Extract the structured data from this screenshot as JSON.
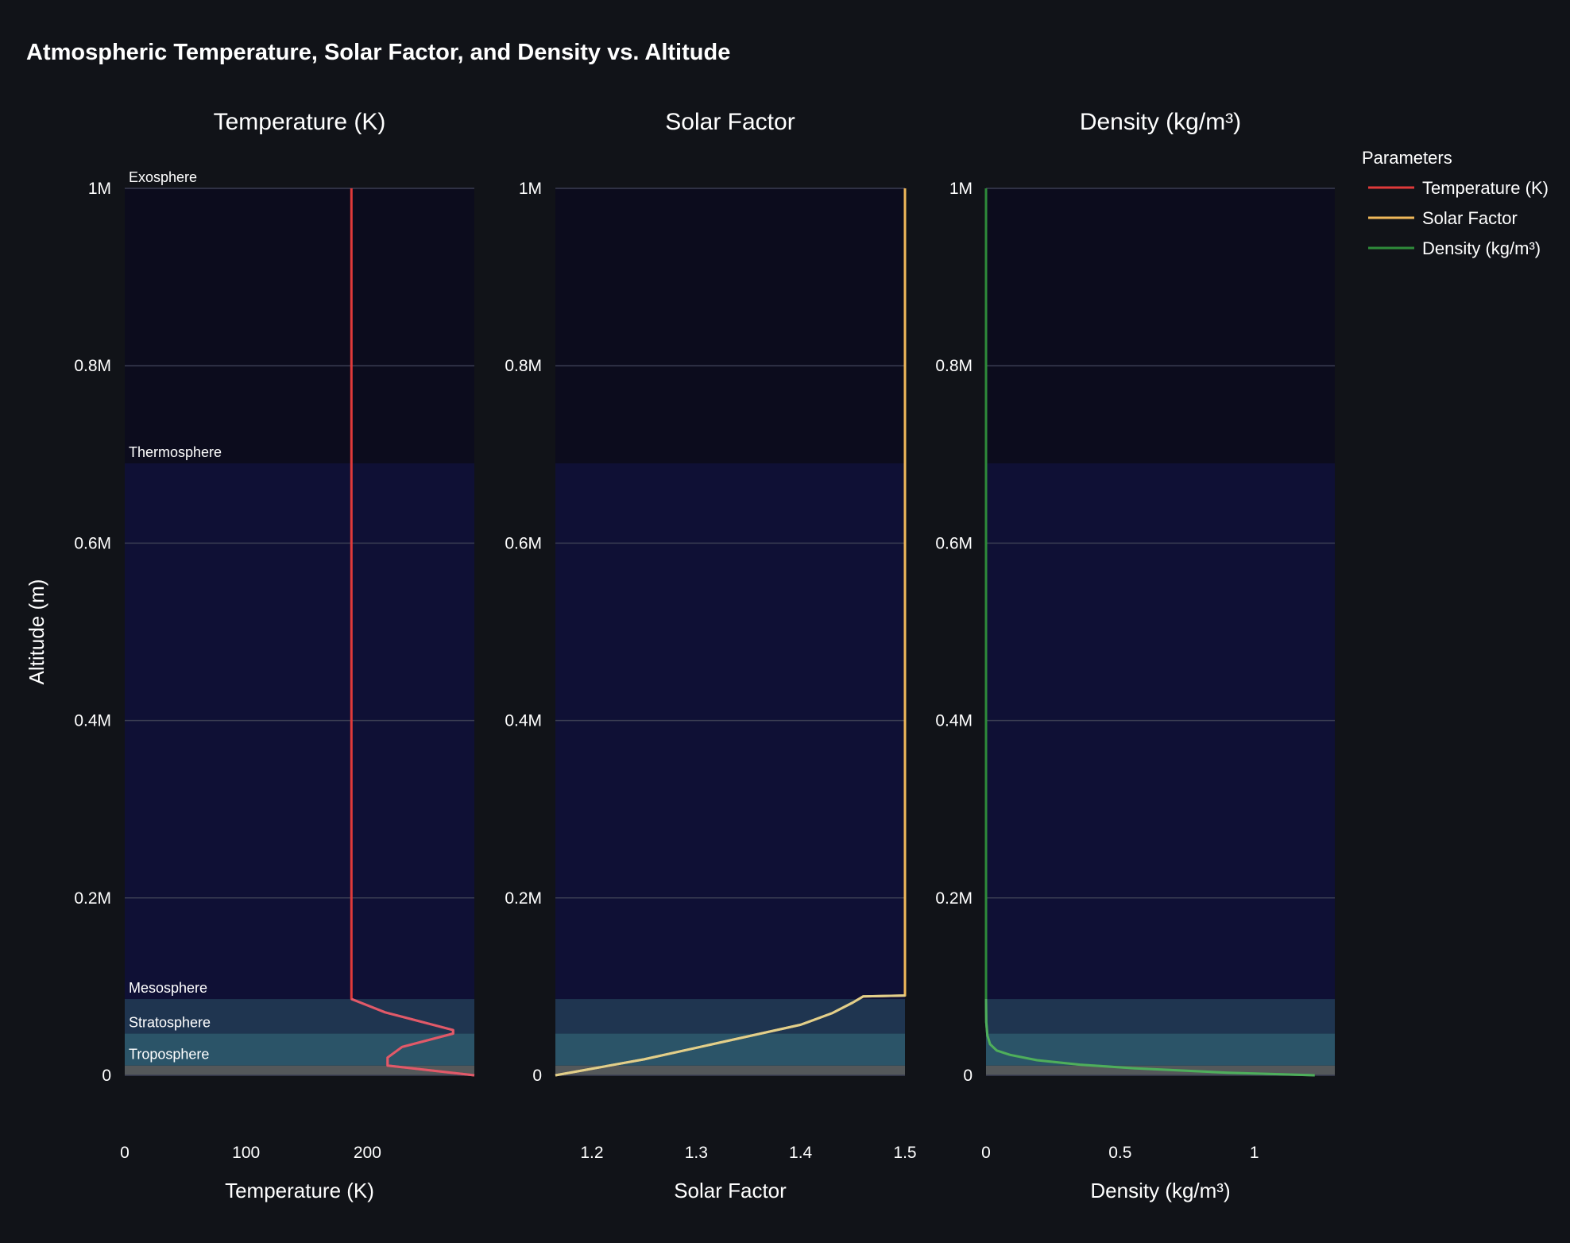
{
  "chart_data": {
    "type": "line",
    "title": "Atmospheric Temperature, Solar Factor, and Density vs. Altitude",
    "ylabel": "Altitude (m)",
    "ylim": [
      0,
      1000000
    ],
    "yticks": [
      {
        "value": 0,
        "label": "0"
      },
      {
        "value": 200000,
        "label": "0.2M"
      },
      {
        "value": 400000,
        "label": "0.4M"
      },
      {
        "value": 600000,
        "label": "0.6M"
      },
      {
        "value": 800000,
        "label": "0.8M"
      },
      {
        "value": 1000000,
        "label": "1M"
      }
    ],
    "grid": true,
    "legend": {
      "title": "Parameters",
      "placement": "top-right",
      "items": [
        {
          "label": "Temperature (K)",
          "color": "#e03a3a"
        },
        {
          "label": "Solar Factor",
          "color": "#f0b85a"
        },
        {
          "label": "Density (kg/m³)",
          "color": "#2e8b3a"
        }
      ]
    },
    "layers": [
      {
        "name": "Troposphere",
        "from": 0,
        "to": 11000,
        "color": "#54585a"
      },
      {
        "name": "Stratosphere",
        "from": 11000,
        "to": 47000,
        "color": "#2b5468"
      },
      {
        "name": "Mesosphere",
        "from": 47000,
        "to": 86000,
        "color": "#1f3550"
      },
      {
        "name": "Thermosphere",
        "from": 86000,
        "to": 690000,
        "color": "#0f1035"
      },
      {
        "name": "Exosphere",
        "from": 690000,
        "to": 1000000,
        "color": "#0c0c1d"
      }
    ],
    "panels": [
      {
        "subtitle": "Temperature (K)",
        "xlabel": "Temperature (K)",
        "xlim": [
          0,
          288.15
        ],
        "xticks": [
          {
            "value": 0,
            "label": "0"
          },
          {
            "value": 100,
            "label": "100"
          },
          {
            "value": 200,
            "label": "200"
          }
        ],
        "series": {
          "name": "Temperature (K)",
          "color": "#e03a3a",
          "points": [
            {
              "x": 288.15,
              "y": 0
            },
            {
              "x": 216.65,
              "y": 11000
            },
            {
              "x": 216.65,
              "y": 20000
            },
            {
              "x": 228.65,
              "y": 32000
            },
            {
              "x": 270.65,
              "y": 47000
            },
            {
              "x": 270.65,
              "y": 51000
            },
            {
              "x": 214.65,
              "y": 71000
            },
            {
              "x": 186.87,
              "y": 86000
            },
            {
              "x": 186.87,
              "y": 1000000
            }
          ]
        }
      },
      {
        "subtitle": "Solar Factor",
        "xlabel": "Solar Factor",
        "xlim": [
          1.165,
          1.5
        ],
        "xticks": [
          {
            "value": 1.2,
            "label": "1.2"
          },
          {
            "value": 1.3,
            "label": "1.3"
          },
          {
            "value": 1.4,
            "label": "1.4"
          },
          {
            "value": 1.5,
            "label": "1.5"
          }
        ],
        "series": {
          "name": "Solar Factor",
          "color": "#f0b85a",
          "points": [
            {
              "x": 1.165,
              "y": 0
            },
            {
              "x": 1.25,
              "y": 18000
            },
            {
              "x": 1.35,
              "y": 44000
            },
            {
              "x": 1.4,
              "y": 57000
            },
            {
              "x": 1.43,
              "y": 70000
            },
            {
              "x": 1.45,
              "y": 82000
            },
            {
              "x": 1.46,
              "y": 89000
            },
            {
              "x": 1.5,
              "y": 90000
            },
            {
              "x": 1.5,
              "y": 1000000
            }
          ]
        }
      },
      {
        "subtitle": "Density (kg/m³)",
        "xlabel": "Density (kg/m³)",
        "xlim": [
          0,
          1.3
        ],
        "xticks": [
          {
            "value": 0,
            "label": "0"
          },
          {
            "value": 0.5,
            "label": "0.5"
          },
          {
            "value": 1,
            "label": "1"
          }
        ],
        "series": {
          "name": "Density (kg/m³)",
          "color": "#2e8b3a",
          "points": [
            {
              "x": 1.225,
              "y": 0
            },
            {
              "x": 0.9,
              "y": 3000
            },
            {
              "x": 0.55,
              "y": 8000
            },
            {
              "x": 0.35,
              "y": 12000
            },
            {
              "x": 0.19,
              "y": 17000
            },
            {
              "x": 0.09,
              "y": 23000
            },
            {
              "x": 0.04,
              "y": 28000
            },
            {
              "x": 0.015,
              "y": 35000
            },
            {
              "x": 0.005,
              "y": 45000
            },
            {
              "x": 0.001,
              "y": 60000
            },
            {
              "x": 0.0001,
              "y": 86000
            },
            {
              "x": 0,
              "y": 1000000
            }
          ]
        }
      }
    ]
  }
}
